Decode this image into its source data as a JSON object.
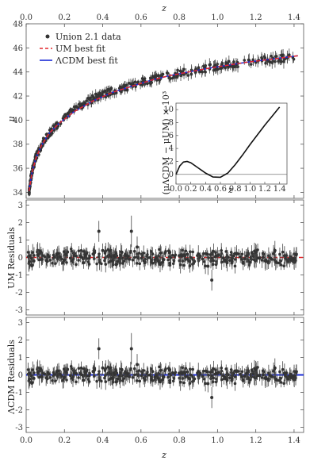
{
  "chart_data": [
    {
      "type": "scatter",
      "panel": "distance-modulus",
      "xlabel": "z",
      "ylabel": "μ",
      "xlim": [
        0.0,
        1.45
      ],
      "ylim": [
        33.5,
        48
      ],
      "xticks": [
        "0.0",
        "0.2",
        "0.4",
        "0.6",
        "0.8",
        "1.0",
        "1.2",
        "1.4"
      ],
      "yticks": [
        "34",
        "36",
        "38",
        "40",
        "42",
        "44",
        "46",
        "48"
      ],
      "legend_position": "top-left",
      "legend": [
        {
          "label": "Union 2.1 data",
          "marker": "dot",
          "color": "#333333"
        },
        {
          "label": "UM best fit",
          "marker": "dashed-line",
          "color": "#e3262b"
        },
        {
          "label": "ΛCDM best fit",
          "marker": "solid-line",
          "color": "#1a2bd6"
        }
      ],
      "series": [
        {
          "name": "UM best fit",
          "style": "dashed",
          "color": "#e3262b",
          "x": [
            0.015,
            0.03,
            0.05,
            0.08,
            0.12,
            0.17,
            0.25,
            0.35,
            0.45,
            0.55,
            0.65,
            0.75,
            0.85,
            0.95,
            1.05,
            1.15,
            1.25,
            1.35,
            1.42
          ],
          "y": [
            34.1,
            35.6,
            36.8,
            37.9,
            38.9,
            39.7,
            40.7,
            41.6,
            42.3,
            42.8,
            43.3,
            43.7,
            44.0,
            44.3,
            44.55,
            44.8,
            45.0,
            45.2,
            45.35
          ]
        },
        {
          "name": "ΛCDM best fit",
          "style": "solid",
          "color": "#1a2bd6",
          "x": [
            0.015,
            0.03,
            0.05,
            0.08,
            0.12,
            0.17,
            0.25,
            0.35,
            0.45,
            0.55,
            0.65,
            0.75,
            0.85,
            0.95,
            1.05,
            1.15,
            1.25,
            1.35,
            1.42
          ],
          "y": [
            34.1,
            35.6,
            36.8,
            37.9,
            38.9,
            39.7,
            40.7,
            41.6,
            42.3,
            42.8,
            43.3,
            43.7,
            44.0,
            44.3,
            44.55,
            44.8,
            45.0,
            45.2,
            45.35
          ]
        },
        {
          "name": "Union 2.1 data",
          "style": "points",
          "color": "#333333",
          "x": [
            0.015,
            0.02,
            0.025,
            0.03,
            0.04,
            0.05,
            0.06,
            0.08,
            0.1,
            0.13,
            0.16,
            0.2,
            0.24,
            0.28,
            0.32,
            0.36,
            0.4,
            0.45,
            0.5,
            0.55,
            0.6,
            0.65,
            0.7,
            0.75,
            0.8,
            0.85,
            0.9,
            0.95,
            1.0,
            1.05,
            1.1,
            1.2,
            1.3,
            1.4
          ],
          "y": [
            34.0,
            34.6,
            35.2,
            35.7,
            36.2,
            36.9,
            37.2,
            37.9,
            38.5,
            39.1,
            39.6,
            40.3,
            40.8,
            41.2,
            41.5,
            41.9,
            42.1,
            42.4,
            42.6,
            42.9,
            43.2,
            43.3,
            43.6,
            43.7,
            43.9,
            44.0,
            44.2,
            44.3,
            44.5,
            44.6,
            44.7,
            44.9,
            45.1,
            45.2
          ],
          "err": [
            0.25,
            0.25,
            0.2,
            0.2,
            0.2,
            0.2,
            0.2,
            0.2,
            0.2,
            0.2,
            0.25,
            0.2,
            0.25,
            0.25,
            0.3,
            0.3,
            0.3,
            0.3,
            0.3,
            0.3,
            0.3,
            0.35,
            0.3,
            0.3,
            0.35,
            0.35,
            0.35,
            0.4,
            0.35,
            0.4,
            0.4,
            0.4,
            0.45,
            0.45
          ]
        }
      ]
    },
    {
      "type": "line",
      "panel": "inset",
      "xlabel": "z",
      "ylabel": "(μΛCDM − μUM) × 10³",
      "xlim": [
        0.0,
        1.5
      ],
      "ylim": [
        -1.5,
        11
      ],
      "xticks": [
        "0.0",
        "0.2",
        "0.4",
        "0.6",
        "0.8",
        "1.0",
        "1.2",
        "1.4"
      ],
      "yticks": [
        "0",
        "2",
        "4",
        "6",
        "8",
        "10"
      ],
      "series": [
        {
          "x": [
            0.0,
            0.05,
            0.1,
            0.15,
            0.2,
            0.3,
            0.4,
            0.5,
            0.6,
            0.7,
            0.8,
            0.9,
            1.0,
            1.1,
            1.2,
            1.3,
            1.4
          ],
          "y": [
            0.0,
            1.3,
            1.9,
            2.0,
            1.8,
            1.0,
            0.2,
            -0.4,
            -0.45,
            0.2,
            1.5,
            3.0,
            4.6,
            6.1,
            7.6,
            9.0,
            10.4
          ]
        }
      ]
    },
    {
      "type": "scatter",
      "panel": "um-residuals",
      "xlabel": "",
      "ylabel": "UM Residuals",
      "xlim": [
        0.0,
        1.45
      ],
      "ylim": [
        -3.3,
        3.3
      ],
      "yticks": [
        "-3",
        "-2",
        "-1",
        "0",
        "1",
        "2",
        "3"
      ],
      "fit_color": "#e3262b",
      "series": [
        {
          "name": "residuals",
          "x": [
            0.02,
            0.04,
            0.06,
            0.08,
            0.12,
            0.16,
            0.2,
            0.25,
            0.3,
            0.35,
            0.38,
            0.4,
            0.45,
            0.5,
            0.55,
            0.58,
            0.62,
            0.66,
            0.7,
            0.75,
            0.8,
            0.85,
            0.9,
            0.95,
            0.97,
            1.0,
            1.05,
            1.1,
            1.2,
            1.25,
            1.3,
            1.35,
            1.4
          ],
          "y": [
            0.1,
            -0.2,
            0.15,
            -0.1,
            0.05,
            0.2,
            -0.15,
            0.1,
            -0.3,
            0.2,
            1.5,
            0.4,
            -0.2,
            0.3,
            1.5,
            0.6,
            -0.3,
            0.2,
            -0.4,
            0.3,
            0.1,
            -0.2,
            0.2,
            -0.5,
            -1.3,
            0.1,
            -0.3,
            0.2,
            0.3,
            -0.2,
            0.4,
            0.1,
            -0.1
          ],
          "err": [
            0.3,
            0.3,
            0.3,
            0.3,
            0.3,
            0.3,
            0.3,
            0.3,
            0.35,
            0.35,
            0.6,
            0.4,
            0.4,
            0.4,
            0.9,
            0.6,
            0.4,
            0.4,
            0.45,
            0.45,
            0.45,
            0.45,
            0.5,
            0.5,
            0.6,
            0.5,
            0.5,
            0.5,
            0.5,
            0.55,
            0.55,
            0.55,
            0.55
          ]
        }
      ]
    },
    {
      "type": "scatter",
      "panel": "lcdm-residuals",
      "xlabel": "z",
      "ylabel": "ΛCDM Residuals",
      "xlim": [
        0.0,
        1.45
      ],
      "ylim": [
        -3.3,
        3.3
      ],
      "xticks": [
        "0.0",
        "0.2",
        "0.4",
        "0.6",
        "0.8",
        "1.0",
        "1.2",
        "1.4"
      ],
      "yticks": [
        "-3",
        "-2",
        "-1",
        "0",
        "1",
        "2",
        "3"
      ],
      "fit_color": "#1a2bd6",
      "series": [
        {
          "name": "residuals",
          "x": [
            0.02,
            0.04,
            0.06,
            0.08,
            0.12,
            0.16,
            0.2,
            0.25,
            0.3,
            0.35,
            0.38,
            0.4,
            0.45,
            0.5,
            0.55,
            0.58,
            0.62,
            0.66,
            0.7,
            0.75,
            0.8,
            0.85,
            0.9,
            0.95,
            0.97,
            1.0,
            1.05,
            1.1,
            1.2,
            1.25,
            1.3,
            1.35,
            1.4
          ],
          "y": [
            0.1,
            -0.2,
            0.15,
            -0.1,
            0.05,
            0.2,
            -0.15,
            0.1,
            -0.3,
            0.2,
            1.5,
            0.4,
            -0.2,
            0.3,
            1.5,
            0.6,
            -0.3,
            0.2,
            -0.4,
            0.3,
            0.1,
            -0.2,
            0.2,
            -0.5,
            -1.3,
            0.1,
            -0.3,
            0.2,
            0.3,
            -0.2,
            0.4,
            0.1,
            -0.1
          ],
          "err": [
            0.3,
            0.3,
            0.3,
            0.3,
            0.3,
            0.3,
            0.3,
            0.3,
            0.35,
            0.35,
            0.6,
            0.4,
            0.4,
            0.4,
            0.9,
            0.6,
            0.4,
            0.4,
            0.45,
            0.45,
            0.45,
            0.45,
            0.5,
            0.5,
            0.6,
            0.5,
            0.5,
            0.5,
            0.5,
            0.55,
            0.55,
            0.55,
            0.55
          ]
        }
      ]
    }
  ],
  "labels": {
    "top_axis": "z",
    "bottom_axis": "z",
    "mu_axis": "μ",
    "um_residuals": "UM Residuals",
    "lcdm_residuals": "ΛCDM Residuals",
    "inset_xlabel": "z",
    "inset_ylabel": "(μΛCDM − μUM) × 10³",
    "inset_ylabel_lcdm_sub": "ΛCDM",
    "inset_ylabel_um_sub": "UM"
  },
  "legend": {
    "data": "Union 2.1 data",
    "um": "UM best fit",
    "lcdm": "ΛCDM best fit"
  }
}
